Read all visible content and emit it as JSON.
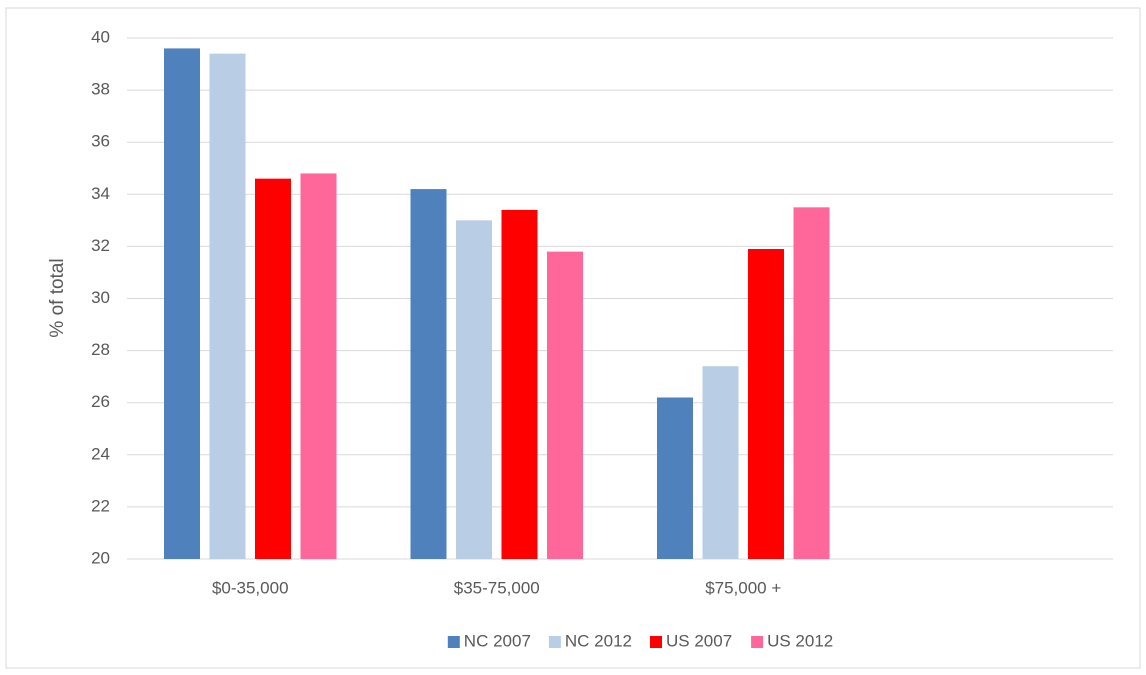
{
  "chart_data": {
    "type": "bar",
    "y_label": "% of total",
    "categories": [
      "$0-35,000",
      "$35-75,000",
      "$75,000 +",
      null
    ],
    "series": [
      {
        "name": "NC 2007",
        "color": "#4f81bd",
        "values": [
          39.6,
          34.2,
          26.2,
          null
        ]
      },
      {
        "name": "NC 2012",
        "color": "#b9cde5",
        "values": [
          39.4,
          33.0,
          27.4,
          null
        ]
      },
      {
        "name": "US 2007",
        "color": "#ff0000",
        "values": [
          34.6,
          33.4,
          31.9,
          null
        ]
      },
      {
        "name": "US 2012",
        "color": "#ff6699",
        "values": [
          34.8,
          31.8,
          33.5,
          null
        ]
      }
    ],
    "ylim": [
      20,
      40
    ],
    "yticks": [
      20,
      22,
      24,
      26,
      28,
      30,
      32,
      34,
      36,
      38,
      40
    ],
    "grid": true,
    "legend": "bottom"
  }
}
